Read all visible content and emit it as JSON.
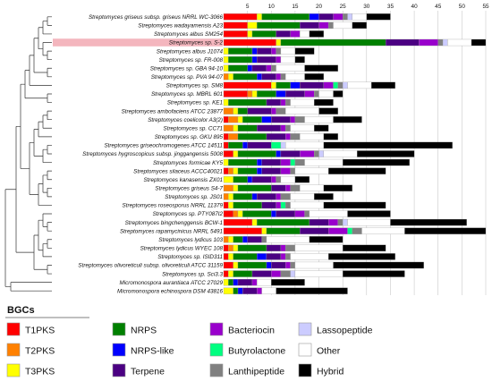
{
  "chart_data": {
    "type": "bar",
    "stacked": true,
    "orientation": "horizontal",
    "xlim": [
      0,
      55
    ],
    "xticks": [
      5,
      10,
      15,
      20,
      25,
      30,
      35,
      40,
      45,
      50,
      55
    ],
    "grid": "vertical-lines",
    "highlight_index": 3,
    "legend": {
      "title": "BGCs",
      "position": "bottom",
      "items": [
        {
          "key": "T1PKS",
          "label": "T1PKS",
          "color": "#ff0000"
        },
        {
          "key": "T2PKS",
          "label": "T2PKS",
          "color": "#ff8000"
        },
        {
          "key": "T3PKS",
          "label": "T3PKS",
          "color": "#ffff00"
        },
        {
          "key": "NRPS",
          "label": "NRPS",
          "color": "#008000"
        },
        {
          "key": "NRPS-like",
          "label": "NRPS-like",
          "color": "#0000ff"
        },
        {
          "key": "Terpene",
          "label": "Terpene",
          "color": "#4b0082"
        },
        {
          "key": "Bacteriocin",
          "label": "Bacteriocin",
          "color": "#9900cc"
        },
        {
          "key": "Butyrolactone",
          "label": "Butyrolactone",
          "color": "#00ff80"
        },
        {
          "key": "Lanthipeptide",
          "label": "Lanthipeptide",
          "color": "#808080"
        },
        {
          "key": "Lassopeptide",
          "label": "Lassopeptide",
          "color": "#ccccff"
        },
        {
          "key": "Other",
          "label": "Other",
          "color": "#ffffff"
        },
        {
          "key": "Hybrid",
          "label": "Hybrid",
          "color": "#000000"
        }
      ]
    },
    "categories": [
      "Streptomyces griseus subsp. griseus NRRL WC-3066",
      "Streptomyces wadayamensis A23",
      "Streptomyces albus SM254",
      "Streptomyces sp. S-2",
      "Streptomyces albus J1074",
      "Streptomyces sp. FR-008",
      "Streptomyces sp. GBA 94-10",
      "Streptomyces sp. PVA 94-07",
      "Streptomyces sp. SM8",
      "Streptomyces sp. MBRL 601",
      "Streptomyces sp. KE1",
      "Streptomyces ambofaciens ATCC 23877",
      "Streptomyces coelicolor A3(2)",
      "Streptomyces sp. CC71",
      "Streptomyces sp. GKU 895",
      "Streptomyces griseochromogenes ATCC 14511",
      "Streptomyces hygroscopicus subsp. jinggangensis 5008",
      "Streptomyces formicae KY5",
      "Streptomyces silaceus ACCC40021",
      "Streptomyces kanasensis ZX01",
      "Streptomyces griseus S4-7",
      "Streptomyces sp. JS01",
      "Streptomyces roseosporus NRRL 11379",
      "Streptomyces sp. PTY087I2",
      "Streptomyces bingchenggensis BCW-1",
      "Streptomyces rapamycinicus NRRL 5491",
      "Streptomyces lydicus 103",
      "Streptomyces lydicus WYEC 108",
      "Streptomyces sp. ISID311",
      "Streptomyces olivoreticuli subsp. olivoreticuli ATCC 31159",
      "Streptomyces sp. Sci3.3",
      "Micromonospora aurantiaca ATCC 27029",
      "Micromonospora echinospora DSM 43816"
    ],
    "series": [
      {
        "name": "T1PKS",
        "values": [
          7,
          5,
          5,
          11,
          0,
          0,
          0,
          0,
          10,
          5,
          0,
          0,
          1,
          0,
          1,
          1,
          2,
          0,
          1,
          0,
          0,
          0,
          1,
          2,
          6,
          8,
          0,
          1,
          1,
          2,
          1,
          0,
          0
        ]
      },
      {
        "name": "T2PKS",
        "values": [
          0,
          0,
          0,
          0,
          0,
          0,
          0,
          1,
          0,
          1,
          0,
          2,
          2,
          2,
          2,
          0,
          0,
          0,
          1,
          0,
          2,
          1,
          0,
          1,
          0,
          0,
          1,
          1,
          0,
          0,
          0,
          0,
          0
        ]
      },
      {
        "name": "T3PKS",
        "values": [
          1,
          2,
          1,
          1,
          1,
          1,
          1,
          1,
          1,
          1,
          1,
          1,
          1,
          1,
          0,
          0,
          1,
          1,
          1,
          2,
          1,
          1,
          1,
          1,
          1,
          1,
          1,
          1,
          1,
          1,
          1,
          1,
          2
        ]
      },
      {
        "name": "NRPS",
        "values": [
          10,
          9,
          5,
          22,
          5,
          5,
          4,
          5,
          3,
          4,
          8,
          2,
          4,
          4,
          6,
          3,
          8,
          6,
          4,
          3,
          7,
          4,
          6,
          6,
          11,
          7,
          2,
          6,
          5,
          6,
          4,
          1,
          1
        ]
      },
      {
        "name": "NRPS-like",
        "values": [
          2,
          0,
          0,
          0,
          1,
          1,
          1,
          1,
          2,
          2,
          0,
          0,
          2,
          0,
          0,
          1,
          1,
          1,
          1,
          1,
          0,
          1,
          0,
          1,
          0,
          0,
          1,
          0,
          2,
          1,
          0,
          1,
          1
        ]
      },
      {
        "name": "Terpene",
        "values": [
          3,
          4,
          3,
          7,
          3,
          4,
          3,
          3,
          5,
          4,
          3,
          5,
          4,
          5,
          4,
          5,
          4,
          4,
          4,
          4,
          3,
          4,
          3,
          4,
          4,
          6,
          3,
          3,
          3,
          3,
          4,
          3,
          3
        ]
      },
      {
        "name": "Bacteriocin",
        "values": [
          2,
          2,
          2,
          4,
          1,
          1,
          1,
          1,
          2,
          2,
          1,
          1,
          1,
          1,
          1,
          0,
          3,
          2,
          2,
          1,
          1,
          1,
          1,
          2,
          2,
          4,
          0,
          1,
          1,
          1,
          2,
          1,
          1
        ]
      },
      {
        "name": "Butyrolactone",
        "values": [
          0,
          0,
          0,
          0,
          0,
          0,
          0,
          0,
          1,
          0,
          0,
          0,
          0,
          0,
          0,
          2,
          0,
          1,
          0,
          0,
          0,
          0,
          1,
          0,
          0,
          1,
          0,
          0,
          0,
          0,
          0,
          0,
          0
        ]
      },
      {
        "name": "Lanthipeptide",
        "values": [
          1,
          1,
          0,
          1,
          1,
          0,
          1,
          1,
          1,
          1,
          1,
          2,
          2,
          1,
          2,
          0,
          1,
          2,
          1,
          1,
          2,
          2,
          1,
          1,
          1,
          2,
          1,
          2,
          1,
          1,
          2,
          0,
          0
        ]
      },
      {
        "name": "Lassopeptide",
        "values": [
          1,
          0,
          0,
          1,
          0,
          0,
          0,
          0,
          1,
          0,
          0,
          0,
          0,
          0,
          0,
          1,
          1,
          0,
          0,
          0,
          0,
          0,
          0,
          0,
          1,
          0,
          0,
          0,
          0,
          0,
          1,
          0,
          0
        ]
      },
      {
        "name": "Other",
        "values": [
          3,
          4,
          2,
          5,
          3,
          3,
          6,
          4,
          5,
          3,
          5,
          7,
          6,
          5,
          5,
          8,
          7,
          8,
          7,
          3,
          5,
          5,
          7,
          8,
          9,
          9,
          9,
          10,
          8,
          8,
          10,
          3,
          3
        ]
      },
      {
        "name": "Hybrid",
        "values": [
          5,
          3,
          3,
          3,
          4,
          2,
          7,
          4,
          5,
          2,
          4,
          4,
          6,
          3,
          3,
          27,
          12,
          14,
          12,
          3,
          6,
          4,
          13,
          9,
          16,
          17,
          7,
          9,
          14,
          19,
          13,
          7,
          15
        ]
      }
    ]
  }
}
